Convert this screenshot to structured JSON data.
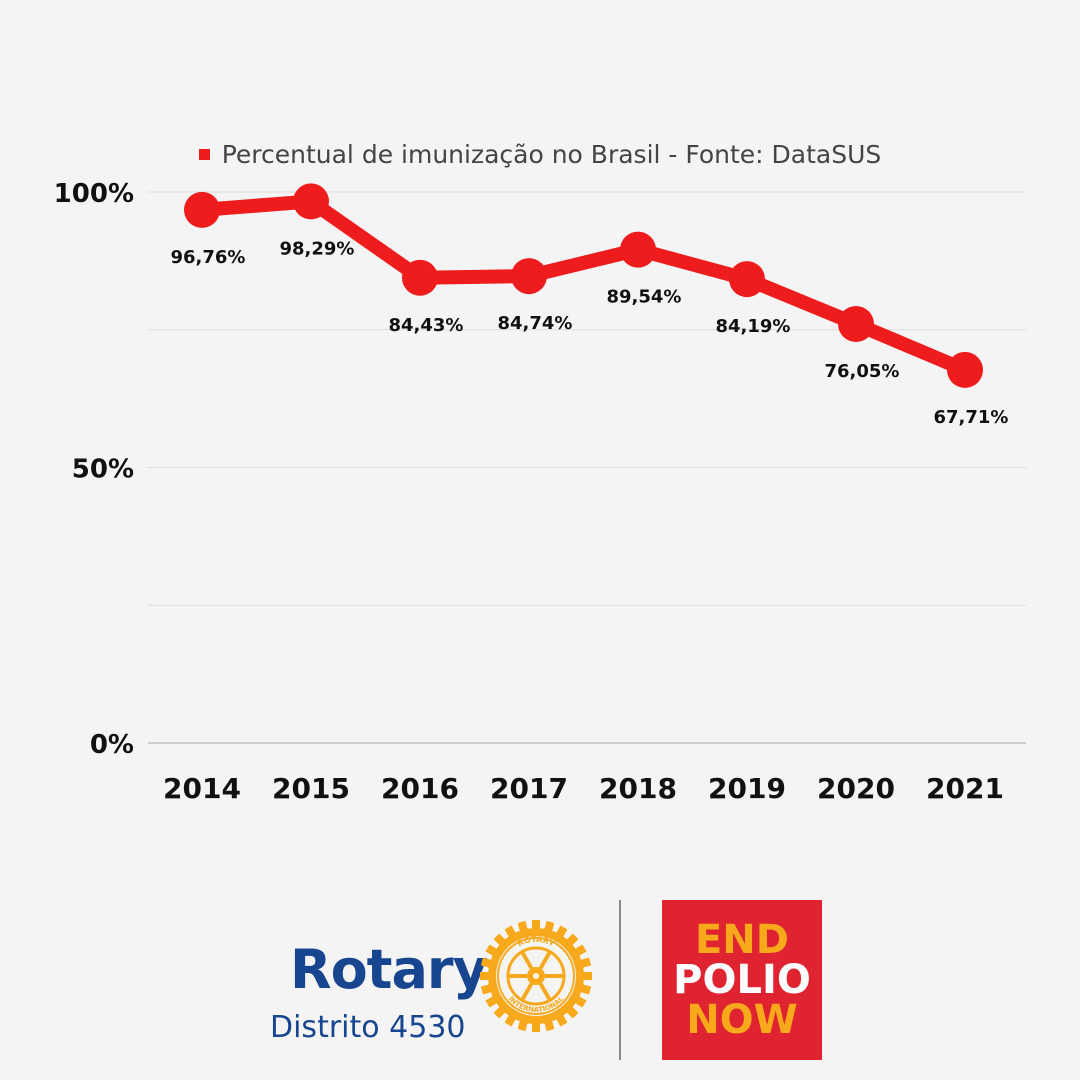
{
  "chart_data": {
    "type": "line",
    "categories": [
      "2014",
      "2015",
      "2016",
      "2017",
      "2018",
      "2019",
      "2020",
      "2021"
    ],
    "series": [
      {
        "name": "Percentual de imunização no Brasil - Fonte: DataSUS",
        "values": [
          96.76,
          98.29,
          84.43,
          84.74,
          89.54,
          84.19,
          76.05,
          67.71
        ],
        "labels": [
          "96,76%",
          "98,29%",
          "84,43%",
          "84,74%",
          "89,54%",
          "84,19%",
          "76,05%",
          "67,71%"
        ]
      }
    ],
    "ylim": [
      0,
      100
    ],
    "yticks": [
      0,
      25,
      50,
      75,
      100
    ],
    "ytick_labels": [
      "0%",
      "",
      "50%",
      "",
      "100%"
    ],
    "grid": true,
    "legend_position": "top-center",
    "color": "#ee1c1c"
  },
  "footer": {
    "rotary_word": "Rotary",
    "rotary_district": "Distrito 4530",
    "rotary_wheel_text_top": "ROTARY",
    "rotary_wheel_text_bottom": "INTERNATIONAL",
    "end": "END",
    "polio": "POLIO",
    "now": "NOW",
    "rotary_color": "#17458f",
    "gold_color": "#f7a81b",
    "epn_bg": "#e02330"
  }
}
